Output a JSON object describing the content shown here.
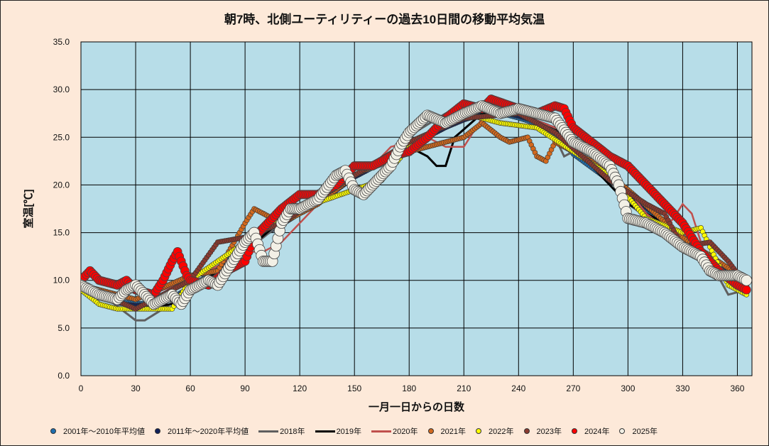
{
  "chart_data": {
    "type": "scatter",
    "title": "朝7時、北側ユーティリティーの過去10日間の移動平均気温",
    "xlabel": "一月一日からの日数",
    "ylabel": "室温[℃]",
    "xlim": [
      0,
      368
    ],
    "ylim": [
      0,
      35
    ],
    "xticks": [
      0,
      30,
      60,
      90,
      120,
      150,
      180,
      210,
      240,
      270,
      300,
      330,
      360
    ],
    "yticks": [
      "0.0",
      "5.0",
      "10.0",
      "15.0",
      "20.0",
      "25.0",
      "30.0",
      "35.0"
    ],
    "grid": true,
    "legend_position": "bottom",
    "plot_bg": "#b7dde8",
    "series": [
      {
        "name": "2001年～2010年平均値",
        "kind": "dot",
        "color": "#1f6fb0",
        "r": 3,
        "points": [
          [
            0,
            9.6
          ],
          [
            10,
            8.8
          ],
          [
            20,
            7.8
          ],
          [
            30,
            7.6
          ],
          [
            40,
            7.6
          ],
          [
            50,
            8.2
          ],
          [
            60,
            9.3
          ],
          [
            70,
            10.6
          ],
          [
            80,
            12
          ],
          [
            90,
            13.5
          ],
          [
            100,
            15
          ],
          [
            110,
            16
          ],
          [
            120,
            17
          ],
          [
            130,
            18.2
          ],
          [
            140,
            19.5
          ],
          [
            150,
            21
          ],
          [
            160,
            22
          ],
          [
            170,
            23
          ],
          [
            180,
            24
          ],
          [
            190,
            25
          ],
          [
            200,
            26
          ],
          [
            210,
            27
          ],
          [
            220,
            27.4
          ],
          [
            230,
            27.5
          ],
          [
            240,
            27
          ],
          [
            250,
            26.4
          ],
          [
            260,
            25.4
          ],
          [
            270,
            23.2
          ],
          [
            280,
            21.8
          ],
          [
            290,
            20.4
          ],
          [
            300,
            19
          ],
          [
            310,
            17.4
          ],
          [
            320,
            16
          ],
          [
            330,
            14.4
          ],
          [
            340,
            13
          ],
          [
            350,
            11.5
          ],
          [
            360,
            10
          ],
          [
            365,
            9.6
          ]
        ]
      },
      {
        "name": "2011年～2020年平均値",
        "kind": "dot",
        "color": "#10205a",
        "r": 3,
        "points": [
          [
            0,
            9.4
          ],
          [
            10,
            8.5
          ],
          [
            20,
            7.6
          ],
          [
            30,
            7.4
          ],
          [
            40,
            7.5
          ],
          [
            50,
            8
          ],
          [
            60,
            9.2
          ],
          [
            70,
            10.4
          ],
          [
            80,
            11.8
          ],
          [
            90,
            13.3
          ],
          [
            100,
            14.8
          ],
          [
            110,
            15.8
          ],
          [
            120,
            17
          ],
          [
            130,
            18
          ],
          [
            140,
            19.4
          ],
          [
            150,
            20.8
          ],
          [
            160,
            21.8
          ],
          [
            170,
            22.8
          ],
          [
            180,
            24
          ],
          [
            190,
            25
          ],
          [
            200,
            26
          ],
          [
            210,
            26.8
          ],
          [
            220,
            27.4
          ],
          [
            230,
            27.6
          ],
          [
            240,
            27.2
          ],
          [
            250,
            26.6
          ],
          [
            260,
            25.6
          ],
          [
            270,
            23.8
          ],
          [
            280,
            22.2
          ],
          [
            290,
            20.6
          ],
          [
            300,
            19
          ],
          [
            310,
            17.6
          ],
          [
            320,
            16.2
          ],
          [
            330,
            14.6
          ],
          [
            340,
            13
          ],
          [
            350,
            11.4
          ],
          [
            360,
            10
          ],
          [
            365,
            9.5
          ]
        ]
      },
      {
        "name": "2018年",
        "kind": "line",
        "color": "#5f5f5f",
        "w": 3,
        "points": [
          [
            0,
            10
          ],
          [
            15,
            8
          ],
          [
            30,
            5.8
          ],
          [
            35,
            5.8
          ],
          [
            45,
            7
          ],
          [
            60,
            9
          ],
          [
            90,
            13
          ],
          [
            120,
            17.5
          ],
          [
            150,
            21
          ],
          [
            165,
            22
          ],
          [
            175,
            24
          ],
          [
            183,
            25.5
          ],
          [
            200,
            27.5
          ],
          [
            210,
            28
          ],
          [
            220,
            28.5
          ],
          [
            240,
            27.5
          ],
          [
            260,
            25
          ],
          [
            265,
            23
          ],
          [
            270,
            23.5
          ],
          [
            290,
            20.5
          ],
          [
            300,
            18
          ],
          [
            330,
            14
          ],
          [
            335,
            15
          ],
          [
            345,
            12
          ],
          [
            355,
            8.5
          ],
          [
            365,
            9
          ]
        ]
      },
      {
        "name": "2019年",
        "kind": "line",
        "color": "#000000",
        "w": 3,
        "points": [
          [
            0,
            9.5
          ],
          [
            30,
            7
          ],
          [
            50,
            7.5
          ],
          [
            60,
            9
          ],
          [
            90,
            13
          ],
          [
            120,
            18
          ],
          [
            150,
            21
          ],
          [
            165,
            22.5
          ],
          [
            180,
            24
          ],
          [
            190,
            23
          ],
          [
            195,
            22
          ],
          [
            200,
            22
          ],
          [
            205,
            25
          ],
          [
            220,
            27.5
          ],
          [
            240,
            27.5
          ],
          [
            260,
            26
          ],
          [
            270,
            24
          ],
          [
            300,
            18
          ],
          [
            320,
            16
          ],
          [
            340,
            12
          ],
          [
            345,
            11
          ],
          [
            365,
            9
          ]
        ]
      },
      {
        "name": "2020年",
        "kind": "line",
        "color": "#c0504d",
        "w": 2.5,
        "points": [
          [
            0,
            9.5
          ],
          [
            30,
            8
          ],
          [
            60,
            10
          ],
          [
            90,
            13
          ],
          [
            100,
            13
          ],
          [
            110,
            14
          ],
          [
            120,
            16
          ],
          [
            140,
            20
          ],
          [
            160,
            22
          ],
          [
            170,
            24
          ],
          [
            190,
            25
          ],
          [
            200,
            24
          ],
          [
            210,
            24
          ],
          [
            220,
            27
          ],
          [
            240,
            27.5
          ],
          [
            260,
            26
          ],
          [
            270,
            25
          ],
          [
            290,
            22
          ],
          [
            310,
            17
          ],
          [
            320,
            15.5
          ],
          [
            325,
            16.5
          ],
          [
            330,
            18
          ],
          [
            335,
            17
          ],
          [
            345,
            11
          ],
          [
            365,
            10
          ]
        ]
      },
      {
        "name": "2021年",
        "kind": "dot",
        "color": "#d2691e",
        "r": 3.5,
        "points": [
          [
            0,
            9.5
          ],
          [
            30,
            8
          ],
          [
            60,
            10.5
          ],
          [
            75,
            11
          ],
          [
            90,
            16
          ],
          [
            95,
            17.5
          ],
          [
            110,
            16
          ],
          [
            130,
            18
          ],
          [
            150,
            21
          ],
          [
            170,
            23
          ],
          [
            200,
            24.5
          ],
          [
            210,
            25
          ],
          [
            220,
            26.5
          ],
          [
            230,
            25
          ],
          [
            235,
            24.5
          ],
          [
            245,
            25
          ],
          [
            250,
            23
          ],
          [
            255,
            22.5
          ],
          [
            260,
            24.5
          ],
          [
            280,
            22.5
          ],
          [
            300,
            19.5
          ],
          [
            330,
            14.5
          ],
          [
            365,
            10
          ]
        ]
      },
      {
        "name": "2022年",
        "kind": "dot",
        "color": "#ffff00",
        "r": 3.5,
        "points": [
          [
            0,
            9
          ],
          [
            10,
            7.5
          ],
          [
            20,
            7
          ],
          [
            30,
            7
          ],
          [
            50,
            7
          ],
          [
            60,
            10
          ],
          [
            90,
            14
          ],
          [
            120,
            17.5
          ],
          [
            150,
            19.5
          ],
          [
            165,
            20.5
          ],
          [
            180,
            24
          ],
          [
            210,
            27.5
          ],
          [
            230,
            26.5
          ],
          [
            250,
            26
          ],
          [
            270,
            23.5
          ],
          [
            290,
            21
          ],
          [
            310,
            16.5
          ],
          [
            330,
            15
          ],
          [
            340,
            15.5
          ],
          [
            355,
            9.5
          ],
          [
            365,
            8.5
          ]
        ]
      },
      {
        "name": "2023年",
        "kind": "dot",
        "color": "#8b3a2f",
        "r": 3.5,
        "points": [
          [
            0,
            9.5
          ],
          [
            30,
            7
          ],
          [
            60,
            10
          ],
          [
            75,
            14
          ],
          [
            90,
            14.5
          ],
          [
            110,
            16
          ],
          [
            130,
            18.5
          ],
          [
            150,
            21
          ],
          [
            180,
            24.5
          ],
          [
            210,
            27
          ],
          [
            240,
            27.5
          ],
          [
            260,
            25.5
          ],
          [
            290,
            20.5
          ],
          [
            310,
            18
          ],
          [
            320,
            17
          ],
          [
            330,
            13.5
          ],
          [
            345,
            14
          ],
          [
            355,
            12
          ],
          [
            365,
            9.5
          ]
        ]
      },
      {
        "name": "2024年",
        "kind": "dot",
        "color": "#ff0000",
        "r": 6,
        "points": [
          [
            0,
            10
          ],
          [
            5,
            11
          ],
          [
            10,
            10
          ],
          [
            20,
            9.5
          ],
          [
            25,
            10
          ],
          [
            30,
            9
          ],
          [
            40,
            8.5
          ],
          [
            45,
            10
          ],
          [
            50,
            12
          ],
          [
            53,
            13
          ],
          [
            58,
            10.5
          ],
          [
            60,
            10
          ],
          [
            70,
            9.5
          ],
          [
            80,
            11
          ],
          [
            90,
            12
          ],
          [
            95,
            14.5
          ],
          [
            100,
            15.5
          ],
          [
            110,
            17.5
          ],
          [
            120,
            19
          ],
          [
            130,
            19
          ],
          [
            140,
            20
          ],
          [
            150,
            22
          ],
          [
            160,
            22
          ],
          [
            170,
            23
          ],
          [
            180,
            23.5
          ],
          [
            190,
            25
          ],
          [
            200,
            27
          ],
          [
            210,
            28.5
          ],
          [
            220,
            28
          ],
          [
            225,
            29
          ],
          [
            240,
            28
          ],
          [
            250,
            27.5
          ],
          [
            260,
            28.3
          ],
          [
            265,
            28
          ],
          [
            270,
            26
          ],
          [
            280,
            24.5
          ],
          [
            290,
            23
          ],
          [
            300,
            22
          ],
          [
            310,
            20
          ],
          [
            320,
            18
          ],
          [
            330,
            16
          ],
          [
            340,
            13
          ],
          [
            350,
            11
          ],
          [
            360,
            9.5
          ],
          [
            365,
            9
          ]
        ]
      },
      {
        "name": "2025年",
        "kind": "dot",
        "color": "#f2f0e6",
        "r": 7.5,
        "points": [
          [
            0,
            9.5
          ],
          [
            10,
            8.5
          ],
          [
            20,
            8
          ],
          [
            25,
            9
          ],
          [
            30,
            9.5
          ],
          [
            40,
            7.5
          ],
          [
            50,
            8.5
          ],
          [
            55,
            7.5
          ],
          [
            60,
            9
          ],
          [
            70,
            10
          ],
          [
            75,
            9.5
          ],
          [
            80,
            11
          ],
          [
            90,
            14
          ],
          [
            95,
            15
          ],
          [
            100,
            12
          ],
          [
            105,
            12
          ],
          [
            110,
            16
          ],
          [
            115,
            17.5
          ],
          [
            120,
            17.5
          ],
          [
            130,
            18.5
          ],
          [
            140,
            21
          ],
          [
            145,
            21.5
          ],
          [
            150,
            19.5
          ],
          [
            155,
            19
          ],
          [
            160,
            20
          ],
          [
            170,
            22
          ],
          [
            175,
            24
          ],
          [
            180,
            25.5
          ],
          [
            190,
            27.3
          ],
          [
            200,
            26.5
          ],
          [
            210,
            27.5
          ],
          [
            220,
            28.3
          ],
          [
            230,
            27.5
          ],
          [
            240,
            28
          ],
          [
            250,
            27.5
          ],
          [
            260,
            27
          ],
          [
            270,
            24.5
          ],
          [
            280,
            23.5
          ],
          [
            290,
            22
          ],
          [
            295,
            20
          ],
          [
            300,
            16.5
          ],
          [
            310,
            16
          ],
          [
            320,
            15
          ],
          [
            330,
            13.5
          ],
          [
            340,
            12.5
          ],
          [
            345,
            11
          ],
          [
            350,
            10.5
          ],
          [
            360,
            10.5
          ],
          [
            365,
            10
          ]
        ]
      }
    ]
  }
}
